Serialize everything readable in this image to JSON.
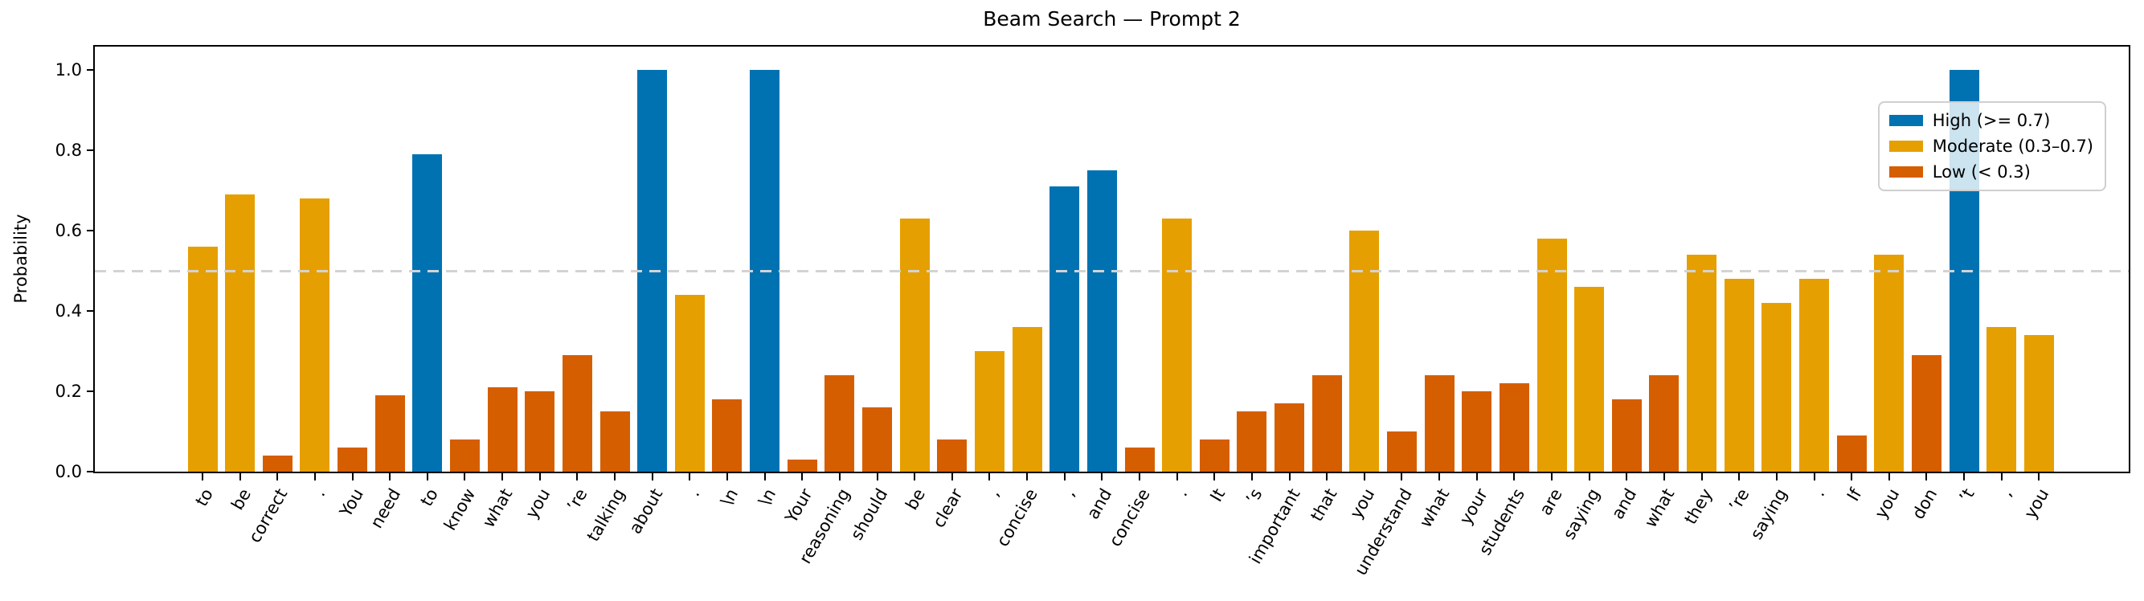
{
  "figure": {
    "title": "Beam Search — Prompt 2",
    "ylabel": "Probability"
  },
  "legend": {
    "items": [
      {
        "label": "High (>= 0.7)",
        "level": "high"
      },
      {
        "label": "Moderate (0.3–0.7)",
        "level": "moderate"
      },
      {
        "label": "Low (< 0.3)",
        "level": "low"
      }
    ]
  },
  "colors": {
    "high": "#0072B2",
    "moderate": "#E69F00",
    "low": "#D55E00",
    "threshold_line": "#d3d3d3",
    "axis": "#000000"
  },
  "thresholds": {
    "high_min": 0.7,
    "moderate_min": 0.3,
    "reference_line": 0.5
  },
  "axis": {
    "ytick_values": [
      0.0,
      0.2,
      0.4,
      0.6,
      0.8,
      1.0
    ]
  },
  "chart_data": {
    "type": "bar",
    "title": "Beam Search — Prompt 2",
    "xlabel": "",
    "ylabel": "Probability",
    "ylim": [
      0,
      1.05
    ],
    "grid": false,
    "legend_position": "upper right",
    "reference_line_y": 0.5,
    "legend_entries": [
      "High (>= 0.7)",
      "Moderate (0.3–0.7)",
      "Low (< 0.3)"
    ],
    "categories": [
      "to",
      "be",
      "correct",
      ".",
      "You",
      "need",
      "to",
      "know",
      "what",
      "you",
      "’re",
      "talking",
      "about",
      ".",
      "\\n",
      "\\n",
      "Your",
      "reasoning",
      "should",
      "be",
      "clear",
      ",",
      "concise",
      ",",
      "and",
      "concise",
      ".",
      "It",
      "’s",
      "important",
      "that",
      "you",
      "understand",
      "what",
      "your",
      "students",
      "are",
      "saying",
      "and",
      "what",
      "they",
      "’re",
      "saying",
      ".",
      "If",
      "you",
      "don",
      "’t",
      ",",
      "you"
    ],
    "values": [
      0.56,
      0.69,
      0.04,
      0.68,
      0.06,
      0.19,
      0.79,
      0.08,
      0.21,
      0.2,
      0.29,
      0.15,
      1.0,
      0.44,
      0.18,
      1.0,
      0.03,
      0.24,
      0.16,
      0.63,
      0.08,
      0.3,
      0.36,
      0.71,
      0.75,
      0.06,
      0.63,
      0.08,
      0.15,
      0.17,
      0.24,
      0.6,
      0.1,
      0.24,
      0.2,
      0.22,
      0.58,
      0.46,
      0.18,
      0.24,
      0.54,
      0.48,
      0.42,
      0.48,
      0.09,
      0.54,
      0.29,
      1.0,
      0.36,
      0.34
    ],
    "levels": [
      "moderate",
      "moderate",
      "low",
      "moderate",
      "low",
      "low",
      "high",
      "low",
      "low",
      "low",
      "low",
      "low",
      "high",
      "moderate",
      "low",
      "high",
      "low",
      "low",
      "low",
      "moderate",
      "low",
      "moderate",
      "moderate",
      "high",
      "high",
      "low",
      "moderate",
      "low",
      "low",
      "low",
      "low",
      "moderate",
      "low",
      "low",
      "low",
      "low",
      "moderate",
      "moderate",
      "low",
      "low",
      "moderate",
      "moderate",
      "moderate",
      "moderate",
      "low",
      "moderate",
      "low",
      "high",
      "moderate",
      "moderate"
    ]
  }
}
